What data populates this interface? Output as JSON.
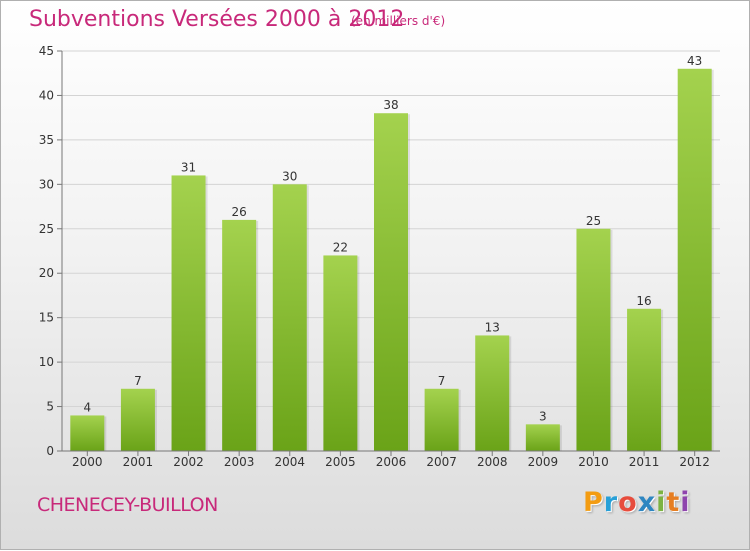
{
  "title": "Subventions Versées 2000 à 2012",
  "subtitle": "(en milliers d'€)",
  "commune": "CHENECEY-BUILLON",
  "logo": [
    "P",
    "r",
    "o",
    "x",
    "i",
    "t",
    "i"
  ],
  "colors": {
    "accent": "#c8297a",
    "bar_light": "#a4d24e",
    "bar_dark": "#6aa318",
    "logo": [
      "#f39c12",
      "#27a0d8",
      "#e74c3c",
      "#2e86c1",
      "#7cb342",
      "#e67e22",
      "#8e44ad"
    ]
  },
  "chart_data": {
    "type": "bar",
    "categories": [
      "2000",
      "2001",
      "2002",
      "2003",
      "2004",
      "2005",
      "2006",
      "2007",
      "2008",
      "2009",
      "2010",
      "2011",
      "2012"
    ],
    "values": [
      4,
      7,
      31,
      26,
      30,
      22,
      38,
      7,
      13,
      3,
      25,
      16,
      43
    ],
    "ylim": [
      0,
      45
    ],
    "yticks": [
      0,
      5,
      10,
      15,
      20,
      25,
      30,
      35,
      40,
      45
    ],
    "grid": true
  }
}
